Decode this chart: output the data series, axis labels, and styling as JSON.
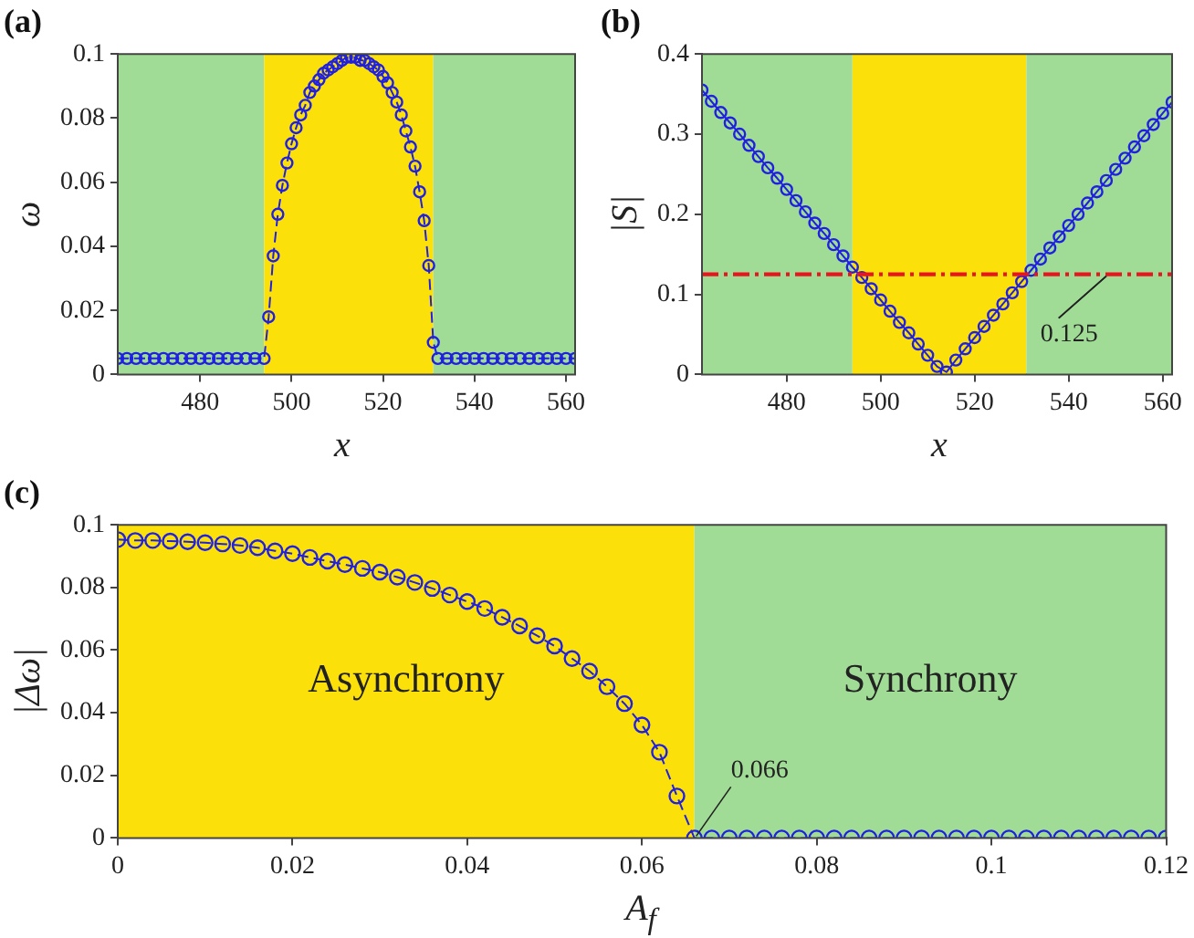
{
  "chart_data": [
    {
      "type": "line",
      "title": "(a)",
      "xlabel": "x",
      "ylabel": "ω",
      "xlim": [
        462,
        562
      ],
      "xticks": [
        480,
        500,
        520,
        540,
        560
      ],
      "ylim": [
        0,
        0.1
      ],
      "yticks": [
        0,
        0.02,
        0.04,
        0.06,
        0.08,
        0.1
      ],
      "grid": false,
      "legend": false,
      "marker": "circle",
      "line_style": "dashed",
      "bands": [
        {
          "axis": "x",
          "from": 462,
          "to": 494,
          "color": "#a0dc96"
        },
        {
          "axis": "x",
          "from": 494,
          "to": 531,
          "color": "#fce00a"
        },
        {
          "axis": "x",
          "from": 531,
          "to": 562,
          "color": "#a0dc96"
        }
      ],
      "series": [
        {
          "color": "#2020e0",
          "x": [
            462,
            464,
            466,
            468,
            470,
            472,
            474,
            476,
            478,
            480,
            482,
            484,
            486,
            488,
            490,
            492,
            494,
            495,
            496,
            497,
            498,
            499,
            500,
            501,
            502,
            503,
            504,
            505,
            506,
            507,
            508,
            509,
            510,
            511,
            512,
            513,
            514,
            515,
            516,
            517,
            518,
            519,
            520,
            521,
            522,
            523,
            524,
            525,
            526,
            527,
            528,
            529,
            530,
            531,
            532,
            534,
            536,
            538,
            540,
            542,
            544,
            546,
            548,
            550,
            552,
            554,
            556,
            558,
            560,
            562
          ],
          "values": [
            0.005,
            0.005,
            0.005,
            0.005,
            0.005,
            0.005,
            0.005,
            0.005,
            0.005,
            0.005,
            0.005,
            0.005,
            0.005,
            0.005,
            0.005,
            0.005,
            0.005,
            0.018,
            0.037,
            0.05,
            0.059,
            0.066,
            0.072,
            0.077,
            0.081,
            0.084,
            0.088,
            0.09,
            0.092,
            0.094,
            0.095,
            0.096,
            0.097,
            0.098,
            0.099,
            0.099,
            0.099,
            0.098,
            0.098,
            0.097,
            0.096,
            0.095,
            0.093,
            0.091,
            0.088,
            0.085,
            0.081,
            0.076,
            0.071,
            0.065,
            0.057,
            0.048,
            0.034,
            0.01,
            0.005,
            0.005,
            0.005,
            0.005,
            0.005,
            0.005,
            0.005,
            0.005,
            0.005,
            0.005,
            0.005,
            0.005,
            0.005,
            0.005,
            0.005,
            0.005
          ]
        }
      ]
    },
    {
      "type": "line",
      "title": "(b)",
      "xlabel": "x",
      "ylabel": "|S|",
      "xlim": [
        462,
        562
      ],
      "xticks": [
        480,
        500,
        520,
        540,
        560
      ],
      "ylim": [
        0,
        0.4
      ],
      "yticks": [
        0,
        0.1,
        0.2,
        0.3,
        0.4
      ],
      "grid": false,
      "legend": false,
      "marker": "circle",
      "bands": [
        {
          "axis": "x",
          "from": 462,
          "to": 494,
          "color": "#a0dc96"
        },
        {
          "axis": "x",
          "from": 494,
          "to": 531,
          "color": "#fce00a"
        },
        {
          "axis": "x",
          "from": 531,
          "to": 562,
          "color": "#a0dc96"
        }
      ],
      "ref_lines": [
        {
          "axis": "y",
          "value": 0.125,
          "label": "0.125",
          "color": "#e8141e",
          "line_style": "dashed"
        }
      ],
      "series": [
        {
          "color": "#2020e0",
          "x": [
            462,
            464,
            466,
            468,
            470,
            472,
            474,
            476,
            478,
            480,
            482,
            484,
            486,
            488,
            490,
            492,
            494,
            496,
            498,
            500,
            502,
            504,
            506,
            508,
            510,
            512,
            514,
            516,
            518,
            520,
            522,
            524,
            526,
            528,
            530,
            532,
            534,
            536,
            538,
            540,
            542,
            544,
            546,
            548,
            550,
            552,
            554,
            556,
            558,
            560,
            562
          ],
          "values": [
            0.355,
            0.341,
            0.327,
            0.314,
            0.3,
            0.286,
            0.272,
            0.258,
            0.245,
            0.231,
            0.217,
            0.203,
            0.189,
            0.176,
            0.162,
            0.148,
            0.134,
            0.121,
            0.107,
            0.093,
            0.079,
            0.065,
            0.052,
            0.038,
            0.024,
            0.01,
            0.003,
            0.018,
            0.032,
            0.046,
            0.06,
            0.074,
            0.088,
            0.102,
            0.116,
            0.13,
            0.144,
            0.158,
            0.172,
            0.186,
            0.2,
            0.214,
            0.228,
            0.242,
            0.256,
            0.27,
            0.284,
            0.298,
            0.312,
            0.326,
            0.34
          ]
        }
      ]
    },
    {
      "type": "line",
      "title": "(c)",
      "xlabel": "A$_{f}$",
      "ylabel": "|Δω|",
      "xlim": [
        0,
        0.12
      ],
      "xticks": [
        0,
        0.02,
        0.04,
        0.06,
        0.08,
        0.1,
        0.12
      ],
      "ylim": [
        0,
        0.1
      ],
      "yticks": [
        0,
        0.02,
        0.04,
        0.06,
        0.08,
        0.1
      ],
      "grid": false,
      "legend": false,
      "marker": "circle",
      "line_style": "dashed",
      "bands": [
        {
          "axis": "x",
          "from": 0,
          "to": 0.066,
          "label": "Asynchrony",
          "color": "#fce00a"
        },
        {
          "axis": "x",
          "from": 0.066,
          "to": 0.12,
          "label": "Synchrony",
          "color": "#a0dc96"
        }
      ],
      "annotations": [
        {
          "text": "0.066",
          "x": 0.066,
          "y": 0
        }
      ],
      "series": [
        {
          "color": "#2020e0",
          "x": [
            0,
            0.002,
            0.004,
            0.006,
            0.008,
            0.01,
            0.012,
            0.014,
            0.016,
            0.018,
            0.02,
            0.022,
            0.024,
            0.026,
            0.028,
            0.03,
            0.032,
            0.034,
            0.036,
            0.038,
            0.04,
            0.042,
            0.044,
            0.046,
            0.048,
            0.05,
            0.052,
            0.054,
            0.056,
            0.058,
            0.06,
            0.062,
            0.064,
            0.066,
            0.068,
            0.07,
            0.072,
            0.074,
            0.076,
            0.078,
            0.08,
            0.082,
            0.084,
            0.086,
            0.088,
            0.09,
            0.092,
            0.094,
            0.096,
            0.098,
            0.1,
            0.102,
            0.104,
            0.106,
            0.108,
            0.11,
            0.112,
            0.114,
            0.116,
            0.118,
            0.12
          ],
          "values": [
            0.0953,
            0.095,
            0.095,
            0.0948,
            0.0946,
            0.0943,
            0.0939,
            0.0934,
            0.0927,
            0.0917,
            0.0908,
            0.0896,
            0.0884,
            0.0873,
            0.0861,
            0.0849,
            0.0833,
            0.0816,
            0.0797,
            0.0776,
            0.0755,
            0.0733,
            0.0705,
            0.0677,
            0.0646,
            0.0613,
            0.0573,
            0.0533,
            0.0483,
            0.0429,
            0.0361,
            0.0274,
            0.0134,
            0,
            0,
            0,
            0,
            0,
            0,
            0,
            0,
            0,
            0,
            0,
            0,
            0,
            0,
            0,
            0,
            0,
            0,
            0,
            0,
            0,
            0,
            0,
            0,
            0,
            0,
            0,
            0
          ]
        }
      ]
    }
  ]
}
